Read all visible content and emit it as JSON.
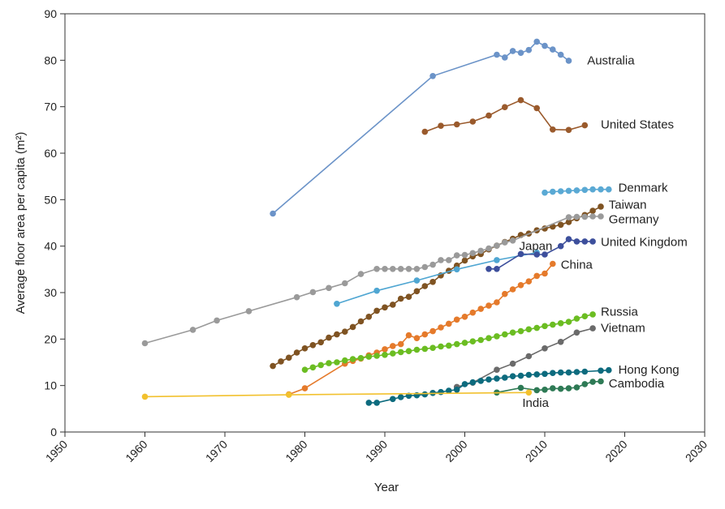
{
  "chart_data": {
    "type": "line",
    "title": "",
    "xlabel": "Year",
    "ylabel": "Average floor area per capita (m²)",
    "xlim": [
      1950,
      2030
    ],
    "ylim": [
      0,
      90
    ],
    "xticks": [
      1950,
      1960,
      1970,
      1980,
      1990,
      2000,
      2010,
      2020,
      2030
    ],
    "yticks": [
      0,
      10,
      20,
      30,
      40,
      50,
      60,
      70,
      80,
      90
    ],
    "grid": false,
    "legend": "inline labels at series ends",
    "series": [
      {
        "name": "Australia",
        "color": "#6b93c8",
        "points": [
          [
            1976,
            47
          ],
          [
            1996,
            76.6
          ],
          [
            2004,
            81.2
          ],
          [
            2005,
            80.6
          ],
          [
            2006,
            82
          ],
          [
            2007,
            81.6
          ],
          [
            2008,
            82.2
          ],
          [
            2009,
            84
          ],
          [
            2010,
            83.1
          ],
          [
            2011,
            82.3
          ],
          [
            2012,
            81.2
          ],
          [
            2013,
            79.9
          ]
        ]
      },
      {
        "name": "United States",
        "color": "#9a5a2c",
        "points": [
          [
            1995,
            64.6
          ],
          [
            1997,
            65.9
          ],
          [
            1999,
            66.2
          ],
          [
            2001,
            66.8
          ],
          [
            2003,
            68.1
          ],
          [
            2005,
            69.9
          ],
          [
            2007,
            71.4
          ],
          [
            2009,
            69.7
          ],
          [
            2011,
            65.1
          ],
          [
            2013,
            65
          ],
          [
            2015,
            66
          ]
        ]
      },
      {
        "name": "Denmark",
        "color": "#5aa9d4",
        "points": [
          [
            2010,
            51.5
          ],
          [
            2011,
            51.7
          ],
          [
            2012,
            51.8
          ],
          [
            2013,
            51.9
          ],
          [
            2014,
            52
          ],
          [
            2015,
            52.1
          ],
          [
            2016,
            52.2
          ],
          [
            2017,
            52.2
          ],
          [
            2018,
            52.2
          ]
        ]
      },
      {
        "name": "Taiwan",
        "color": "#7f5322",
        "points": [
          [
            1976,
            14.2
          ],
          [
            1977,
            15.2
          ],
          [
            1978,
            16
          ],
          [
            1979,
            17.1
          ],
          [
            1980,
            18
          ],
          [
            1981,
            18.7
          ],
          [
            1982,
            19.3
          ],
          [
            1983,
            20.3
          ],
          [
            1984,
            21
          ],
          [
            1985,
            21.6
          ],
          [
            1986,
            22.6
          ],
          [
            1987,
            23.8
          ],
          [
            1988,
            24.8
          ],
          [
            1989,
            26.1
          ],
          [
            1990,
            26.8
          ],
          [
            1991,
            27.4
          ],
          [
            1992,
            28.7
          ],
          [
            1993,
            29.1
          ],
          [
            1994,
            30.3
          ],
          [
            1995,
            31.4
          ],
          [
            1996,
            32.3
          ],
          [
            1997,
            33.7
          ],
          [
            1998,
            34.7
          ],
          [
            1999,
            35.8
          ],
          [
            2000,
            36.9
          ],
          [
            2001,
            37.8
          ],
          [
            2002,
            38.3
          ],
          [
            2003,
            39.3
          ],
          [
            2004,
            40.1
          ],
          [
            2005,
            40.9
          ],
          [
            2006,
            41.6
          ],
          [
            2007,
            42.4
          ],
          [
            2008,
            42.7
          ],
          [
            2009,
            43.4
          ],
          [
            2010,
            43.8
          ],
          [
            2011,
            44.2
          ],
          [
            2012,
            44.6
          ],
          [
            2013,
            45.2
          ],
          [
            2014,
            46
          ],
          [
            2015,
            46.7
          ],
          [
            2016,
            47.6
          ],
          [
            2017,
            48.5
          ]
        ]
      },
      {
        "name": "Germany",
        "color": "#9a9a9a",
        "points": [
          [
            1960,
            19.1
          ],
          [
            1966,
            22
          ],
          [
            1969,
            24
          ],
          [
            1973,
            26
          ],
          [
            1979,
            29
          ],
          [
            1981,
            30.1
          ],
          [
            1983,
            31
          ],
          [
            1985,
            32
          ],
          [
            1987,
            34
          ],
          [
            1989,
            35.1
          ],
          [
            1990,
            35.1
          ],
          [
            1991,
            35.1
          ],
          [
            1992,
            35.1
          ],
          [
            1993,
            35.1
          ],
          [
            1994,
            35.1
          ],
          [
            1995,
            35.5
          ],
          [
            1996,
            36
          ],
          [
            1997,
            37
          ],
          [
            1998,
            37
          ],
          [
            1999,
            38
          ],
          [
            2000,
            38.1
          ],
          [
            2001,
            38.5
          ],
          [
            2002,
            39
          ],
          [
            2003,
            39.5
          ],
          [
            2004,
            40.1
          ],
          [
            2005,
            40.8
          ],
          [
            2006,
            41.2
          ],
          [
            2013,
            46.2
          ],
          [
            2014,
            46.3
          ],
          [
            2015,
            46.3
          ],
          [
            2016,
            46.4
          ],
          [
            2017,
            46.4
          ]
        ]
      },
      {
        "name": "Japan",
        "color": "#4fa6d2",
        "points": [
          [
            1984,
            27.6
          ],
          [
            1989,
            30.4
          ],
          [
            1994,
            32.6
          ],
          [
            1999,
            35
          ],
          [
            2004,
            37
          ],
          [
            2009,
            38.6
          ]
        ]
      },
      {
        "name": "United Kingdom",
        "color": "#3d4f9c",
        "points": [
          [
            2003,
            35.1
          ],
          [
            2004,
            35.1
          ],
          [
            2007,
            38.3
          ],
          [
            2009,
            38.2
          ],
          [
            2010,
            38.2
          ],
          [
            2012,
            40
          ],
          [
            2013,
            41.5
          ],
          [
            2014,
            41
          ],
          [
            2015,
            41
          ],
          [
            2016,
            41
          ]
        ]
      },
      {
        "name": "China",
        "color": "#e57a2b",
        "points": [
          [
            1978,
            8.1
          ],
          [
            1980,
            9.4
          ],
          [
            1985,
            14.7
          ],
          [
            1986,
            15.3
          ],
          [
            1987,
            15.8
          ],
          [
            1988,
            16.5
          ],
          [
            1989,
            17.1
          ],
          [
            1990,
            17.8
          ],
          [
            1991,
            18.5
          ],
          [
            1992,
            18.9
          ],
          [
            1993,
            20.8
          ],
          [
            1994,
            20.2
          ],
          [
            1995,
            21.0
          ],
          [
            1996,
            21.7
          ],
          [
            1997,
            22.5
          ],
          [
            1998,
            23.3
          ],
          [
            1999,
            24.2
          ],
          [
            2000,
            24.8
          ],
          [
            2001,
            25.7
          ],
          [
            2002,
            26.5
          ],
          [
            2003,
            27.2
          ],
          [
            2004,
            27.9
          ],
          [
            2005,
            29.7
          ],
          [
            2006,
            30.7
          ],
          [
            2007,
            31.6
          ],
          [
            2008,
            32.4
          ],
          [
            2009,
            33.6
          ],
          [
            2010,
            34.1
          ],
          [
            2011,
            36.2
          ]
        ]
      },
      {
        "name": "Russia",
        "color": "#6bbd22",
        "points": [
          [
            1980,
            13.4
          ],
          [
            1981,
            13.9
          ],
          [
            1982,
            14.4
          ],
          [
            1983,
            14.8
          ],
          [
            1984,
            15
          ],
          [
            1985,
            15.4
          ],
          [
            1986,
            15.7
          ],
          [
            1987,
            15.9
          ],
          [
            1988,
            16.2
          ],
          [
            1989,
            16.4
          ],
          [
            1990,
            16.6
          ],
          [
            1991,
            16.9
          ],
          [
            1992,
            17.2
          ],
          [
            1993,
            17.4
          ],
          [
            1994,
            17.7
          ],
          [
            1995,
            17.9
          ],
          [
            1996,
            18.1
          ],
          [
            1997,
            18.4
          ],
          [
            1998,
            18.6
          ],
          [
            1999,
            18.9
          ],
          [
            2000,
            19.2
          ],
          [
            2001,
            19.5
          ],
          [
            2002,
            19.8
          ],
          [
            2003,
            20.2
          ],
          [
            2004,
            20.6
          ],
          [
            2005,
            21
          ],
          [
            2006,
            21.4
          ],
          [
            2007,
            21.7
          ],
          [
            2008,
            22.1
          ],
          [
            2009,
            22.4
          ],
          [
            2010,
            22.8
          ],
          [
            2011,
            23.1
          ],
          [
            2012,
            23.4
          ],
          [
            2013,
            23.7
          ],
          [
            2014,
            24.4
          ],
          [
            2015,
            24.9
          ],
          [
            2016,
            25.3
          ]
        ]
      },
      {
        "name": "Vietnam",
        "color": "#6a6a6a",
        "points": [
          [
            1999,
            9.7
          ],
          [
            2001,
            10.6
          ],
          [
            2004,
            13.4
          ],
          [
            2006,
            14.7
          ],
          [
            2008,
            16.3
          ],
          [
            2010,
            18
          ],
          [
            2012,
            19.4
          ],
          [
            2014,
            21.4
          ],
          [
            2016,
            22.3
          ]
        ]
      },
      {
        "name": "Hong Kong",
        "color": "#0d6b7e",
        "points": [
          [
            1988,
            6.3
          ],
          [
            1989,
            6.3
          ],
          [
            1991,
            7.1
          ],
          [
            1992,
            7.5
          ],
          [
            1993,
            7.8
          ],
          [
            1994,
            7.9
          ],
          [
            1995,
            8.1
          ],
          [
            1996,
            8.4
          ],
          [
            1997,
            8.6
          ],
          [
            1998,
            8.9
          ],
          [
            1999,
            9.1
          ],
          [
            2000,
            10.3
          ],
          [
            2001,
            10.7
          ],
          [
            2002,
            11
          ],
          [
            2003,
            11.3
          ],
          [
            2004,
            11.5
          ],
          [
            2005,
            11.7
          ],
          [
            2006,
            12
          ],
          [
            2007,
            12.1
          ],
          [
            2008,
            12.3
          ],
          [
            2009,
            12.4
          ],
          [
            2010,
            12.5
          ],
          [
            2011,
            12.7
          ],
          [
            2012,
            12.8
          ],
          [
            2013,
            12.8
          ],
          [
            2014,
            12.9
          ],
          [
            2015,
            13
          ],
          [
            2017,
            13.2
          ],
          [
            2018,
            13.3
          ]
        ]
      },
      {
        "name": "Cambodia",
        "color": "#2e7a55",
        "points": [
          [
            2004,
            8.5
          ],
          [
            2007,
            9.5
          ],
          [
            2009,
            9
          ],
          [
            2010,
            9.1
          ],
          [
            2011,
            9.4
          ],
          [
            2012,
            9.3
          ],
          [
            2013,
            9.4
          ],
          [
            2014,
            9.6
          ],
          [
            2015,
            10.3
          ],
          [
            2016,
            10.8
          ],
          [
            2017,
            10.9
          ]
        ]
      },
      {
        "name": "India",
        "color": "#f2c12e",
        "points": [
          [
            1960,
            7.6
          ],
          [
            1978,
            8
          ],
          [
            2008,
            8.5
          ]
        ]
      }
    ],
    "labels": [
      {
        "text": "Australia",
        "x": 2015.3,
        "y": 80
      },
      {
        "text": "United States",
        "x": 2017,
        "y": 66.2
      },
      {
        "text": "Denmark",
        "x": 2019.2,
        "y": 52.6
      },
      {
        "text": "Taiwan",
        "x": 2018.0,
        "y": 48.9
      },
      {
        "text": "Germany",
        "x": 2018.0,
        "y": 45.8
      },
      {
        "text": "Japan",
        "x": 2006.8,
        "y": 40.0
      },
      {
        "text": "United Kingdom",
        "x": 2017.0,
        "y": 40.9
      },
      {
        "text": "China",
        "x": 2012.0,
        "y": 36.0
      },
      {
        "text": "Russia",
        "x": 2017.0,
        "y": 25.9
      },
      {
        "text": "Vietnam",
        "x": 2017.0,
        "y": 22.4
      },
      {
        "text": "Hong Kong",
        "x": 2019.2,
        "y": 13.4
      },
      {
        "text": "Cambodia",
        "x": 2018.0,
        "y": 10.5
      },
      {
        "text": "India",
        "x": 2007.2,
        "y": 6.3
      }
    ]
  }
}
